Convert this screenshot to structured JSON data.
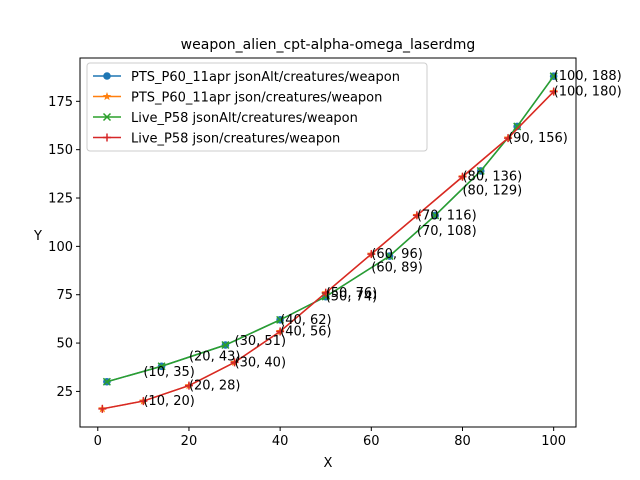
{
  "chart_data": {
    "type": "line",
    "title": "weapon_alien_cpt-alpha-omega_laserdmg",
    "xlabel": "X",
    "ylabel": "Y",
    "xlim": [
      -3.9,
      104.9
    ],
    "ylim": [
      6.6,
      197.4
    ],
    "xticks": [
      0,
      20,
      40,
      60,
      80,
      100
    ],
    "yticks": [
      25,
      50,
      75,
      100,
      125,
      150,
      175
    ],
    "grid": false,
    "legend_position": "top-left",
    "series": [
      {
        "name": "PTS_P60_11apr jsonAlt/creatures/weapon",
        "color": "#1f77b4",
        "marker": "circle",
        "x": [
          2,
          14,
          28,
          40,
          50,
          64,
          74,
          84,
          92,
          100
        ],
        "y": [
          30,
          38,
          49,
          62,
          74,
          95,
          116,
          139,
          162,
          188
        ]
      },
      {
        "name": "PTS_P60_11apr json/creatures/weapon",
        "color": "#ff7f0e",
        "marker": "star",
        "x": [
          1,
          10,
          20,
          30,
          40,
          50,
          60,
          70,
          80,
          90,
          100
        ],
        "y": [
          16,
          20,
          28,
          40,
          56,
          76,
          96,
          116,
          136,
          156,
          180
        ]
      },
      {
        "name": "Live_P58 jsonAlt/creatures/weapon",
        "color": "#2ca02c",
        "marker": "x",
        "x": [
          2,
          14,
          28,
          40,
          50,
          64,
          74,
          84,
          92,
          100
        ],
        "y": [
          30,
          38,
          49,
          62,
          74,
          95,
          116,
          139,
          162,
          188
        ]
      },
      {
        "name": "Live_P58 json/creatures/weapon",
        "color": "#d62728",
        "marker": "plus",
        "x": [
          1,
          10,
          20,
          30,
          40,
          50,
          60,
          70,
          80,
          90,
          100
        ],
        "y": [
          16,
          20,
          28,
          40,
          56,
          76,
          96,
          116,
          136,
          156,
          180
        ]
      }
    ],
    "annotations": [
      {
        "text": "(10, 35)",
        "x": 10,
        "y": 35
      },
      {
        "text": "(20, 43)",
        "x": 20,
        "y": 43
      },
      {
        "text": "(30, 51)",
        "x": 30,
        "y": 51
      },
      {
        "text": "(40, 62)",
        "x": 40,
        "y": 62
      },
      {
        "text": "(50, 76)",
        "x": 50,
        "y": 76
      },
      {
        "text": "(60, 96)",
        "x": 60,
        "y": 96
      },
      {
        "text": "(70, 116)",
        "x": 70,
        "y": 116
      },
      {
        "text": "(80, 136)",
        "x": 80,
        "y": 136
      },
      {
        "text": "(90, 156)",
        "x": 90,
        "y": 156
      },
      {
        "text": "(100, 188)",
        "x": 100,
        "y": 188
      },
      {
        "text": "(10, 20)",
        "x": 10,
        "y": 20
      },
      {
        "text": "(20, 28)",
        "x": 20,
        "y": 28
      },
      {
        "text": "(30, 40)",
        "x": 30,
        "y": 40
      },
      {
        "text": "(40, 56)",
        "x": 40,
        "y": 56
      },
      {
        "text": "(50, 74)",
        "x": 50,
        "y": 74
      },
      {
        "text": "(60, 89)",
        "x": 60,
        "y": 89
      },
      {
        "text": "(70, 108)",
        "x": 70,
        "y": 108
      },
      {
        "text": "(80, 129)",
        "x": 80,
        "y": 129
      },
      {
        "text": "(100, 180)",
        "x": 100,
        "y": 180
      }
    ]
  }
}
